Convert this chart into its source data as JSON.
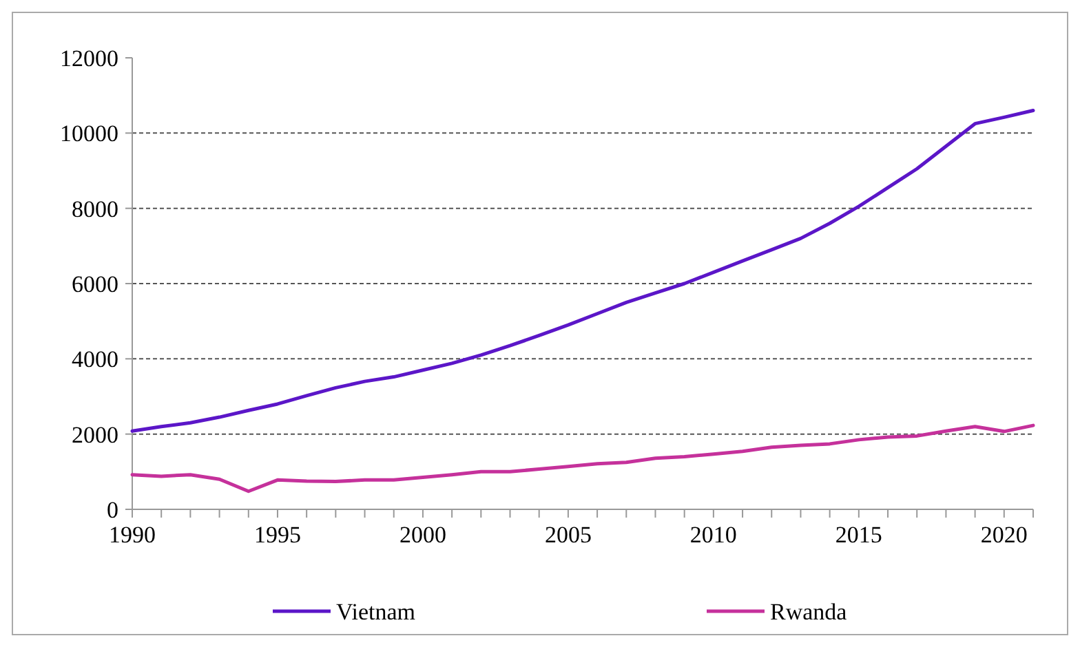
{
  "chart_data": {
    "type": "line",
    "x": [
      1990,
      1991,
      1992,
      1993,
      1994,
      1995,
      1996,
      1997,
      1998,
      1999,
      2000,
      2001,
      2002,
      2003,
      2004,
      2005,
      2006,
      2007,
      2008,
      2009,
      2010,
      2011,
      2012,
      2013,
      2014,
      2015,
      2016,
      2017,
      2018,
      2019,
      2020,
      2021
    ],
    "series": [
      {
        "name": "Vietnam",
        "color": "#5b16c8",
        "values": [
          2080,
          2200,
          2300,
          2450,
          2630,
          2800,
          3020,
          3230,
          3400,
          3520,
          3700,
          3880,
          4100,
          4350,
          4620,
          4900,
          5200,
          5500,
          5750,
          6000,
          6300,
          6600,
          6900,
          7200,
          7600,
          8050,
          8550,
          9050,
          9650,
          10250,
          10420,
          10600
        ]
      },
      {
        "name": "Rwanda",
        "color": "#c5319b",
        "values": [
          920,
          880,
          920,
          800,
          480,
          780,
          750,
          740,
          780,
          780,
          850,
          920,
          1000,
          1000,
          1070,
          1140,
          1210,
          1250,
          1360,
          1400,
          1470,
          1540,
          1650,
          1700,
          1740,
          1850,
          1920,
          1950,
          2080,
          2200,
          2070,
          2230
        ]
      }
    ],
    "xlim": [
      1990,
      2021
    ],
    "xticks": [
      1990,
      {
        "value": 1991,
        "label": null
      },
      {
        "value": 1992,
        "label": null
      },
      {
        "value": 1993,
        "label": null
      },
      {
        "value": 1994,
        "label": null
      },
      1995,
      {
        "value": 1996,
        "label": null
      },
      {
        "value": 1997,
        "label": null
      },
      {
        "value": 1998,
        "label": null
      },
      {
        "value": 1999,
        "label": null
      },
      2000,
      {
        "value": 2001,
        "label": null
      },
      {
        "value": 2002,
        "label": null
      },
      {
        "value": 2003,
        "label": null
      },
      {
        "value": 2004,
        "label": null
      },
      2005,
      {
        "value": 2006,
        "label": null
      },
      {
        "value": 2007,
        "label": null
      },
      {
        "value": 2008,
        "label": null
      },
      {
        "value": 2009,
        "label": null
      },
      2010,
      {
        "value": 2011,
        "label": null
      },
      {
        "value": 2012,
        "label": null
      },
      {
        "value": 2013,
        "label": null
      },
      {
        "value": 2014,
        "label": null
      },
      2015,
      {
        "value": 2016,
        "label": null
      },
      {
        "value": 2017,
        "label": null
      },
      {
        "value": 2018,
        "label": null
      },
      {
        "value": 2019,
        "label": null
      },
      2020,
      {
        "value": 2021,
        "label": null
      }
    ],
    "ylim": [
      0,
      12000
    ],
    "yticks": [
      0,
      2000,
      4000,
      6000,
      8000,
      10000,
      12000
    ],
    "grid": "y",
    "legend": "bottom",
    "marker": "none",
    "line_style": "solid"
  }
}
